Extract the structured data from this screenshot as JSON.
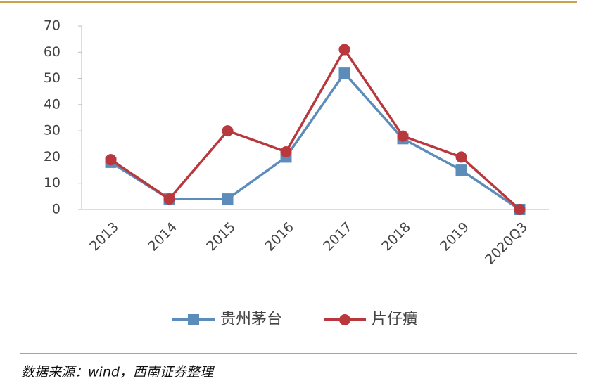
{
  "chart_data": {
    "type": "line",
    "categories": [
      "2013",
      "2014",
      "2015",
      "2016",
      "2017",
      "2018",
      "2019",
      "2020Q3"
    ],
    "series": [
      {
        "name": "贵州茅台",
        "color": "#5b8cba",
        "marker": "square",
        "values": [
          18,
          4,
          4,
          20,
          52,
          27,
          15,
          0
        ]
      },
      {
        "name": "片仔癀",
        "color": "#b8383d",
        "marker": "circle",
        "values": [
          19,
          4,
          30,
          22,
          61,
          28,
          20,
          0
        ]
      }
    ],
    "ylim": [
      0,
      70
    ],
    "yticks": [
      0,
      10,
      20,
      30,
      40,
      50,
      60,
      70
    ],
    "grid": false,
    "legend": "bottom",
    "source": "数据来源：wind，西南证券整理"
  }
}
